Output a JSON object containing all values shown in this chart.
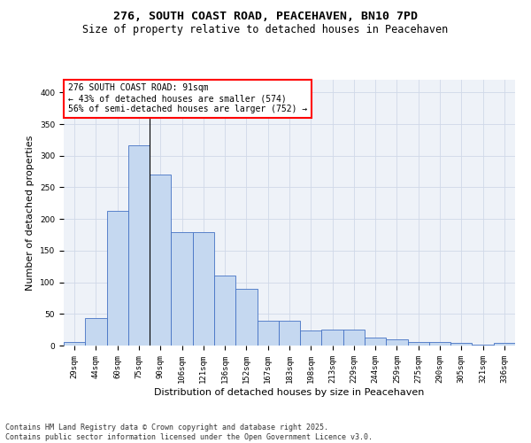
{
  "title_line1": "276, SOUTH COAST ROAD, PEACEHAVEN, BN10 7PD",
  "title_line2": "Size of property relative to detached houses in Peacehaven",
  "xlabel": "Distribution of detached houses by size in Peacehaven",
  "ylabel": "Number of detached properties",
  "categories": [
    "29sqm",
    "44sqm",
    "60sqm",
    "75sqm",
    "90sqm",
    "106sqm",
    "121sqm",
    "136sqm",
    "152sqm",
    "167sqm",
    "183sqm",
    "198sqm",
    "213sqm",
    "229sqm",
    "244sqm",
    "259sqm",
    "275sqm",
    "290sqm",
    "305sqm",
    "321sqm",
    "336sqm"
  ],
  "values": [
    5,
    44,
    213,
    316,
    270,
    179,
    179,
    110,
    90,
    39,
    39,
    24,
    25,
    25,
    13,
    10,
    6,
    6,
    4,
    1,
    4
  ],
  "bar_color": "#c5d8f0",
  "bar_edge_color": "#4472c4",
  "vline_x_index": 3.5,
  "annotation_text": "276 SOUTH COAST ROAD: 91sqm\n← 43% of detached houses are smaller (574)\n56% of semi-detached houses are larger (752) →",
  "annotation_box_color": "white",
  "annotation_box_edge_color": "red",
  "grid_color": "#d0d8e8",
  "background_color": "#eef2f8",
  "ylim": [
    0,
    420
  ],
  "yticks": [
    0,
    50,
    100,
    150,
    200,
    250,
    300,
    350,
    400
  ],
  "footer_line1": "Contains HM Land Registry data © Crown copyright and database right 2025.",
  "footer_line2": "Contains public sector information licensed under the Open Government Licence v3.0.",
  "title_fontsize": 9.5,
  "subtitle_fontsize": 8.5,
  "axis_label_fontsize": 8,
  "tick_fontsize": 6.5,
  "annotation_fontsize": 7,
  "footer_fontsize": 6
}
